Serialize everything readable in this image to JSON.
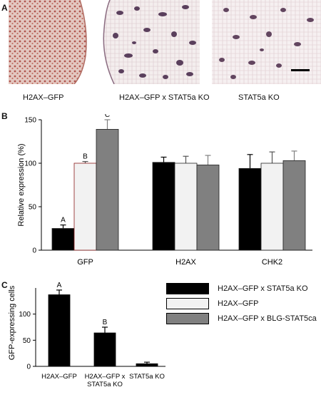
{
  "panels": {
    "a": {
      "letter": "A",
      "captions": [
        "H2AX–GFP",
        "H2AX–GFP x STAT5a KO",
        "STAT5a KO"
      ]
    },
    "b": {
      "letter": "B"
    },
    "c": {
      "letter": "C"
    }
  },
  "legend": [
    {
      "label": "H2AX–GFP x STAT5a KO",
      "color": "#000000"
    },
    {
      "label": "H2AX–GFP",
      "color": "#f2f2f2"
    },
    {
      "label": "H2AX–GFP x BLG-STAT5ca",
      "color": "#808080"
    }
  ],
  "chart_data": [
    {
      "type": "bar",
      "title": "",
      "xlabel": "",
      "ylabel": "Relative expression (%)",
      "ylim": [
        0,
        150
      ],
      "yticks": [
        0,
        50,
        100,
        150
      ],
      "categories": [
        "GFP",
        "H2AX",
        "CHK2"
      ],
      "series": [
        {
          "name": "H2AX–GFP x STAT5a KO",
          "color": "#000000",
          "values": [
            25,
            101,
            94
          ],
          "errors": [
            4,
            6,
            16
          ]
        },
        {
          "name": "H2AX–GFP",
          "color": "#f2f2f2",
          "values": [
            100,
            100,
            100
          ],
          "errors": [
            2,
            8,
            13
          ]
        },
        {
          "name": "H2AX–GFP x BLG-STAT5ca",
          "color": "#808080",
          "values": [
            139,
            98,
            103
          ],
          "errors": [
            11,
            11,
            11
          ]
        }
      ],
      "annotations": [
        {
          "text": "A",
          "category": "GFP",
          "series": 0
        },
        {
          "text": "B",
          "category": "GFP",
          "series": 1
        },
        {
          "text": "C",
          "category": "GFP",
          "series": 2
        }
      ]
    },
    {
      "type": "bar",
      "title": "",
      "xlabel": "",
      "ylabel": "GFP-expressing cells",
      "ylim": [
        0,
        150
      ],
      "yticks": [
        0,
        50,
        100
      ],
      "categories": [
        "H2AX–GFP",
        "H2AX–GFP x STAT5a KO",
        "STAT5a KO"
      ],
      "category_lines": [
        [
          "H2AX–GFP"
        ],
        [
          "H2AX–GFP x",
          "STAT5a KO"
        ],
        [
          "STAT5a KO"
        ]
      ],
      "values": [
        137,
        64,
        5
      ],
      "errors": [
        9,
        11,
        3
      ],
      "color": "#000000",
      "annotations": [
        {
          "text": "A",
          "index": 0
        },
        {
          "text": "B",
          "index": 1
        }
      ]
    }
  ]
}
